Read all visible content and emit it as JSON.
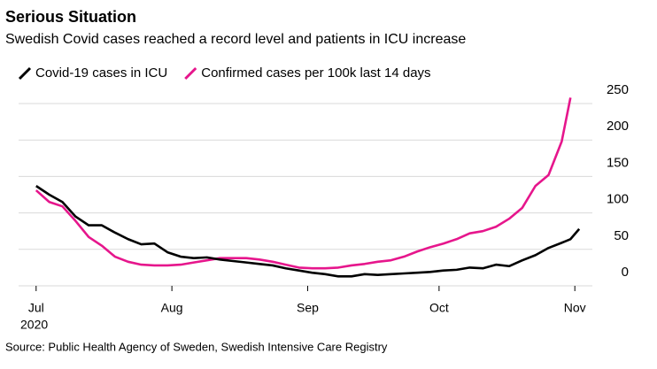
{
  "chart_data": {
    "type": "line",
    "title": "Serious Situation",
    "subtitle": "Swedish Covid cases reached a record level and patients in ICU increase",
    "source": "Source: Public Health Agency of Sweden, Swedish Intensive Care Registry",
    "x": [
      0,
      3,
      6,
      9,
      12,
      15,
      18,
      21,
      24,
      27,
      30,
      33,
      36,
      39,
      42,
      45,
      48,
      51,
      54,
      57,
      60,
      63,
      66,
      69,
      72,
      75,
      78,
      81,
      84,
      87,
      90,
      93,
      96,
      99,
      102,
      105,
      108,
      111,
      114,
      117,
      120,
      122,
      124
    ],
    "series": [
      {
        "name": "Covid-19 cases in ICU",
        "color": "#000000",
        "values": [
          137,
          125,
          115,
          95,
          83,
          83,
          73,
          64,
          57,
          58,
          46,
          40,
          38,
          39,
          36,
          34,
          32,
          30,
          28,
          24,
          21,
          18,
          16,
          13,
          13,
          16,
          15,
          16,
          17,
          18,
          19,
          21,
          22,
          25,
          24,
          29,
          27,
          35,
          42,
          52,
          59,
          64,
          78
        ]
      },
      {
        "name": "Confirmed cases per 100k last 14 days",
        "color": "#e6168c",
        "values": [
          131,
          115,
          109,
          89,
          67,
          55,
          40,
          33,
          29,
          28,
          28,
          29,
          32,
          35,
          38,
          38,
          38,
          36,
          33,
          29,
          25,
          24,
          24,
          25,
          28,
          30,
          33,
          35,
          40,
          47,
          53,
          58,
          64,
          72,
          75,
          81,
          92,
          107,
          137,
          152,
          198,
          258,
          null
        ]
      }
    ],
    "xlim": [
      -4,
      127
    ],
    "xticks": [
      {
        "value": 0,
        "label": "Jul"
      },
      {
        "value": 31,
        "label": "Aug"
      },
      {
        "value": 62,
        "label": "Sep"
      },
      {
        "value": 92,
        "label": "Oct"
      },
      {
        "value": 123,
        "label": "Nov"
      }
    ],
    "x_year_label": "2020",
    "ylim": [
      0,
      250
    ],
    "yticks": [
      0,
      50,
      100,
      150,
      200,
      250
    ],
    "grid": true
  }
}
